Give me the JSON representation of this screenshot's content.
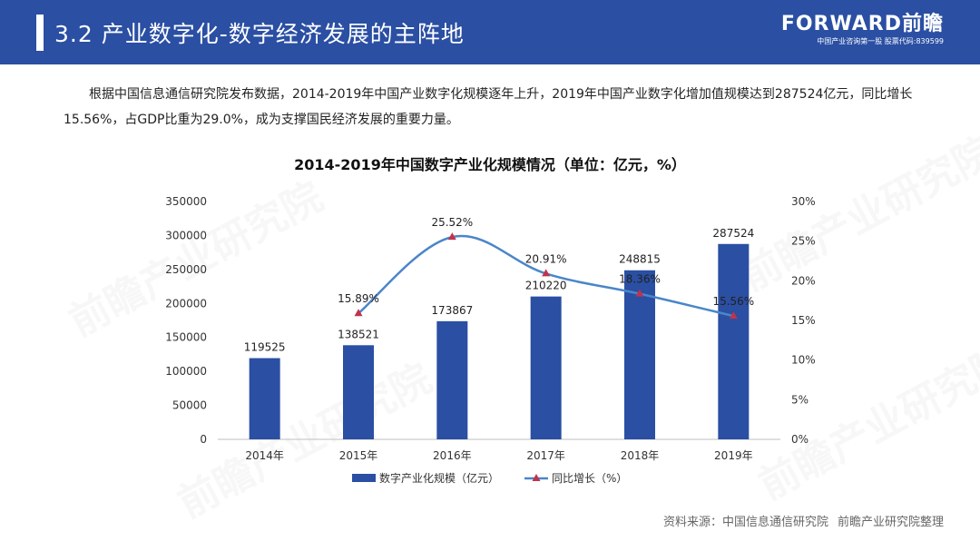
{
  "header": {
    "title": "3.2 产业数字化-数字经济发展的主阵地",
    "brand_name": "FORWARD前瞻",
    "brand_sub": "中国产业咨询第一股 股票代码:839599"
  },
  "intro": "根据中国信息通信研究院发布数据，2014-2019年中国产业数字化规模逐年上升，2019年中国产业数字化增加值规模达到287524亿元，同比增长15.56%，占GDP比重为29.0%，成为支撑国民经济发展的重要力量。",
  "watermark": "前瞻产业研究院",
  "source": {
    "label": "资料来源：",
    "org": "中国信息通信研究院",
    "compiler": "前瞻产业研究院整理"
  },
  "colors": {
    "header_bg": "#2a4fa3",
    "bar": "#2a4fa3",
    "line": "#4a86c8",
    "marker": "#c0334d"
  },
  "chart_data": {
    "type": "bar",
    "title": "2014-2019年中国数字产业化规模情况（单位：亿元，%）",
    "categories": [
      "2014年",
      "2015年",
      "2016年",
      "2017年",
      "2018年",
      "2019年"
    ],
    "series": [
      {
        "name": "数字产业化规模（亿元）",
        "type": "bar",
        "axis": "left",
        "values": [
          119525,
          138521,
          173867,
          210220,
          248815,
          287524
        ],
        "labels": [
          "119525",
          "138521",
          "173867",
          "210220",
          "248815",
          "287524"
        ]
      },
      {
        "name": "同比增长（%）",
        "type": "line",
        "axis": "right",
        "values": [
          null,
          15.89,
          25.52,
          20.91,
          18.36,
          15.56
        ],
        "labels": [
          "",
          "15.89%",
          "25.52%",
          "20.91%",
          "18.36%",
          "15.56%"
        ]
      }
    ],
    "y_left": {
      "range": [
        0,
        350000
      ],
      "ticks": [
        "0",
        "50000",
        "100000",
        "150000",
        "200000",
        "250000",
        "300000",
        "350000"
      ]
    },
    "y_right": {
      "range": [
        0,
        30
      ],
      "ticks": [
        "0%",
        "5%",
        "10%",
        "15%",
        "20%",
        "25%",
        "30%"
      ]
    },
    "grid": false,
    "legend_position": "bottom"
  }
}
